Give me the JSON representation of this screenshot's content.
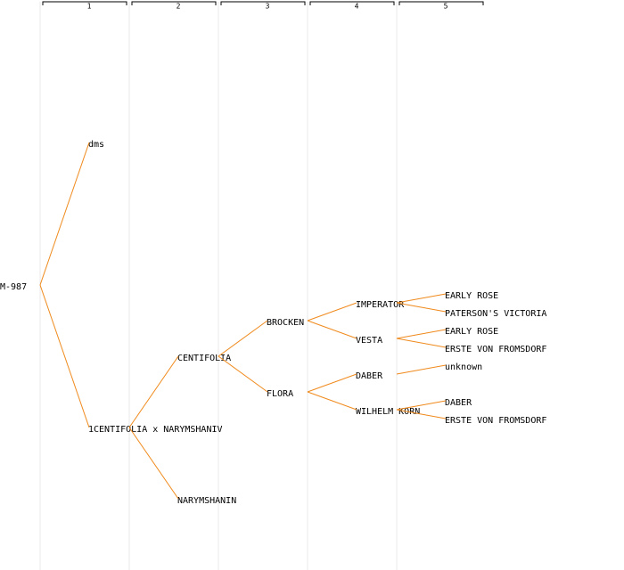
{
  "header": {
    "columns": [
      "1",
      "2",
      "3",
      "4",
      "5"
    ]
  },
  "tree": {
    "label": "M-987",
    "children": [
      {
        "label": "dms"
      },
      {
        "label": "1CENTIFOLIA x NARYMSHANIV",
        "children": [
          {
            "label": "CENTIFOLIA",
            "children": [
              {
                "label": "BROCKEN",
                "children": [
                  {
                    "label": "IMPERATOR",
                    "children": [
                      {
                        "label": "EARLY ROSE"
                      },
                      {
                        "label": "PATERSON'S VICTORIA"
                      }
                    ]
                  },
                  {
                    "label": "VESTA",
                    "color": "#0000ff",
                    "children": [
                      {
                        "label": "EARLY ROSE"
                      },
                      {
                        "label": "ERSTE VON FROMSDORF"
                      }
                    ]
                  }
                ]
              },
              {
                "label": "FLORA",
                "color": "#0000ff",
                "children": [
                  {
                    "label": "DABER",
                    "children": [
                      {
                        "label": "unknown"
                      }
                    ]
                  },
                  {
                    "label": "WILHELM KORN",
                    "children": [
                      {
                        "label": "DABER"
                      },
                      {
                        "label": "ERSTE VON FROMSDORF"
                      }
                    ]
                  }
                ]
              }
            ]
          },
          {
            "label": "NARYMSHANIN"
          }
        ]
      }
    ]
  }
}
